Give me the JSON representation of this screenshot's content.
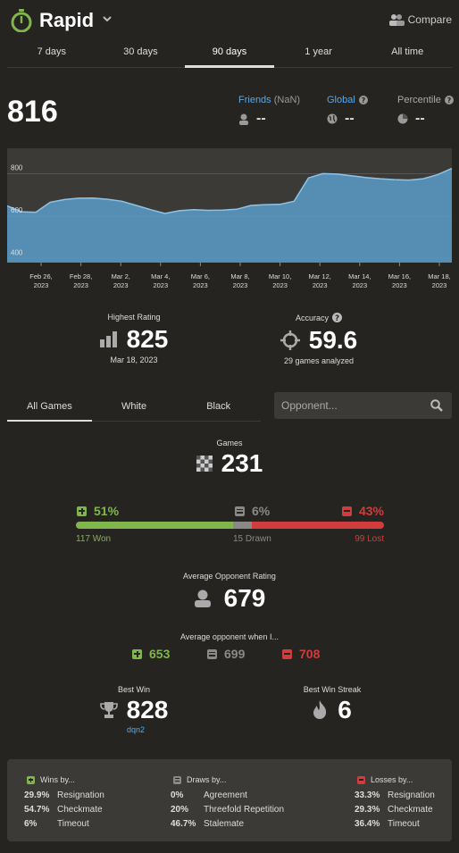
{
  "header": {
    "title": "Rapid",
    "compare": "Compare"
  },
  "periods": [
    "7 days",
    "30 days",
    "90 days",
    "1 year",
    "All time"
  ],
  "active_period": 2,
  "rating": "816",
  "friends": {
    "label": "Friends",
    "suffix": "(NaN)",
    "value": "--"
  },
  "global": {
    "label": "Global",
    "value": "--"
  },
  "percentile": {
    "label": "Percentile",
    "value": "--"
  },
  "chart_data": {
    "type": "area",
    "x_ticks": [
      "Feb 26, 2023",
      "Feb 28, 2023",
      "Mar 2, 2023",
      "Mar 4, 2023",
      "Mar 6, 2023",
      "Mar 8, 2023",
      "Mar 10, 2023",
      "Mar 12, 2023",
      "Mar 14, 2023",
      "Mar 16, 2023",
      "Mar 18, 2023"
    ],
    "y_ticks": [
      400,
      600,
      800
    ],
    "ylim": [
      380,
      920
    ],
    "series": [
      {
        "values": [
          648,
          620,
          618,
          665,
          678,
          684,
          685,
          679,
          670,
          650,
          630,
          612,
          625,
          630,
          627,
          628,
          632,
          650,
          654,
          655,
          670,
          780,
          800,
          798,
          790,
          782,
          776,
          772,
          770,
          776,
          795,
          825
        ]
      }
    ],
    "grid": "horizontal",
    "color": "#5a9ec9"
  },
  "highest": {
    "label": "Highest Rating",
    "value": "825",
    "date": "Mar 18, 2023"
  },
  "accuracy": {
    "label": "Accuracy",
    "value": "59.6",
    "sub": "29 games analyzed"
  },
  "game_tabs": [
    "All Games",
    "White",
    "Black"
  ],
  "opponent_placeholder": "Opponent...",
  "games": {
    "label": "Games",
    "value": "231"
  },
  "results": {
    "won_pct": "51%",
    "drawn_pct": "6%",
    "lost_pct": "43%",
    "won_label": "117 Won",
    "drawn_label": "15 Drawn",
    "lost_label": "99 Lost",
    "won_frac": 0.51,
    "drawn_frac": 0.06,
    "lost_frac": 0.43
  },
  "avg_opp": {
    "label": "Average Opponent Rating",
    "value": "679"
  },
  "avg_when": {
    "label": "Average opponent when I...",
    "win": "653",
    "draw": "699",
    "loss": "708"
  },
  "best_win": {
    "label": "Best Win",
    "value": "828",
    "user": "dqn2"
  },
  "streak": {
    "label": "Best Win Streak",
    "value": "6"
  },
  "colors": {
    "green": "#81b64c",
    "gray": "#8b8987",
    "red": "#d13c3c",
    "blue": "#5aa7e8"
  },
  "wins_by": {
    "title": "Wins by...",
    "rows": [
      {
        "pct": "29.9%",
        "label": "Resignation"
      },
      {
        "pct": "54.7%",
        "label": "Checkmate"
      },
      {
        "pct": "6%",
        "label": "Timeout"
      }
    ]
  },
  "draws_by": {
    "title": "Draws by...",
    "rows": [
      {
        "pct": "0%",
        "label": "Agreement"
      },
      {
        "pct": "20%",
        "label": "Threefold Repetition"
      },
      {
        "pct": "46.7%",
        "label": "Stalemate"
      }
    ]
  },
  "losses_by": {
    "title": "Losses by...",
    "rows": [
      {
        "pct": "33.3%",
        "label": "Resignation"
      },
      {
        "pct": "29.3%",
        "label": "Checkmate"
      },
      {
        "pct": "36.4%",
        "label": "Timeout"
      }
    ]
  }
}
